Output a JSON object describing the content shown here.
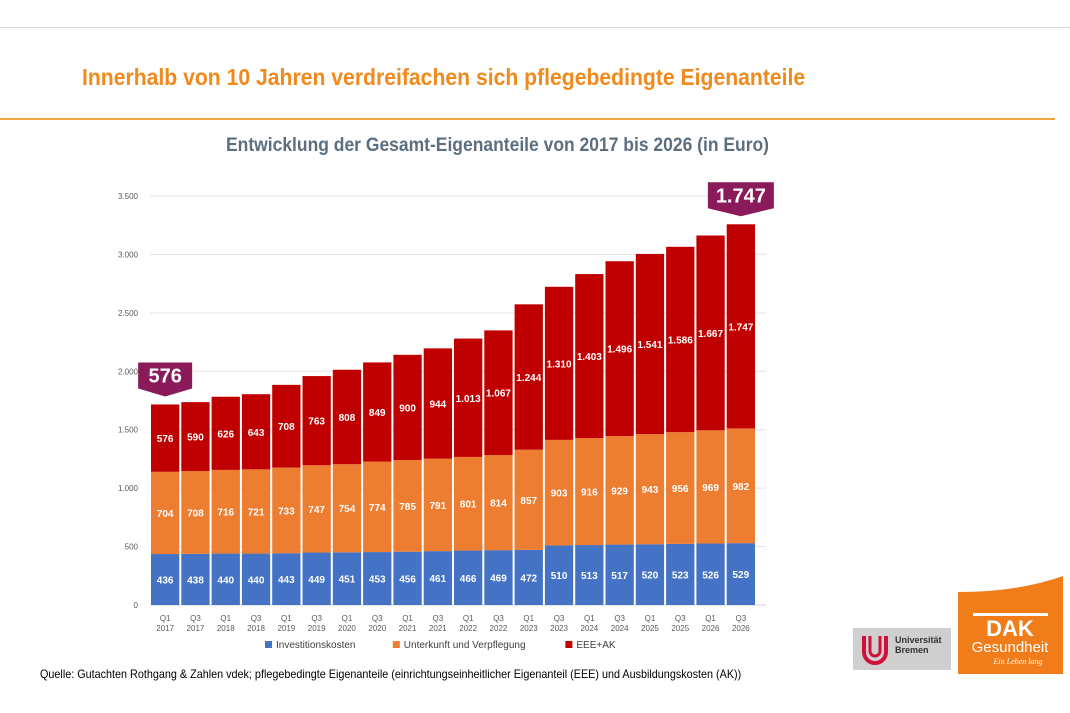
{
  "title": "Innerhalb von 10 Jahren verdreifachen sich pflegebedingte Eigenanteile",
  "source": "Quelle: Gutachten Rothgang & Zahlen vdek; pflegebedingte Eigenanteile (einrichtungseinheitlicher Eigenanteil (EEE) und Ausbildungskosten (AK))",
  "logos": {
    "university": "Universität Bremen",
    "dak": "DAK",
    "dak_sub": "Gesundheit",
    "dak_slogan": "Ein Leben lang"
  },
  "chart_data": {
    "type": "bar",
    "stacked": true,
    "title": "Entwicklung der Gesamt-Eigenanteile von 2017 bis 2026 (in Euro)",
    "categories": [
      [
        "Q1",
        "2017"
      ],
      [
        "Q3",
        "2017"
      ],
      [
        "Q1",
        "2018"
      ],
      [
        "Q3",
        "2018"
      ],
      [
        "Q1",
        "2019"
      ],
      [
        "Q3",
        "2019"
      ],
      [
        "Q1",
        "2020"
      ],
      [
        "Q3",
        "2020"
      ],
      [
        "Q1",
        "2021"
      ],
      [
        "Q3",
        "2021"
      ],
      [
        "Q1",
        "2022"
      ],
      [
        "Q3",
        "2022"
      ],
      [
        "Q1",
        "2023"
      ],
      [
        "Q3",
        "2023"
      ],
      [
        "Q1",
        "2024"
      ],
      [
        "Q3",
        "2024"
      ],
      [
        "Q1",
        "2025"
      ],
      [
        "Q3",
        "2025"
      ],
      [
        "Q1",
        "2026"
      ],
      [
        "Q3",
        "2026"
      ]
    ],
    "series": [
      {
        "name": "Investitionskosten",
        "color": "#4472C4",
        "values": [
          436,
          438,
          440,
          440,
          443,
          449,
          451,
          453,
          456,
          461,
          466,
          469,
          472,
          510,
          513,
          517,
          520,
          523,
          526,
          529
        ]
      },
      {
        "name": "Unterkunft und Verpflegung",
        "color": "#ED7D31",
        "values": [
          704,
          708,
          716,
          721,
          733,
          747,
          754,
          774,
          785,
          791,
          801,
          814,
          857,
          903,
          916,
          929,
          943,
          956,
          969,
          982
        ]
      },
      {
        "name": "EEE+AK",
        "color": "#C00000",
        "values": [
          576,
          590,
          626,
          643,
          708,
          763,
          808,
          849,
          900,
          944,
          1013,
          1067,
          1244,
          1310,
          1403,
          1496,
          1541,
          1586,
          1667,
          1747
        ]
      }
    ],
    "ylim": [
      0,
      3500
    ],
    "yticks": [
      0,
      500,
      1000,
      1500,
      2000,
      2500,
      3000,
      3500
    ],
    "ytick_labels": [
      "0",
      "500",
      "1.000",
      "1.500",
      "2.000",
      "2.500",
      "3.000",
      "3.500"
    ],
    "grid": true,
    "legend": "bottom",
    "callouts": [
      {
        "label": "576",
        "category_index": 0,
        "color": "#8B1A5A"
      },
      {
        "label": "1.747",
        "category_index": 19,
        "color": "#8B1A5A"
      }
    ]
  }
}
